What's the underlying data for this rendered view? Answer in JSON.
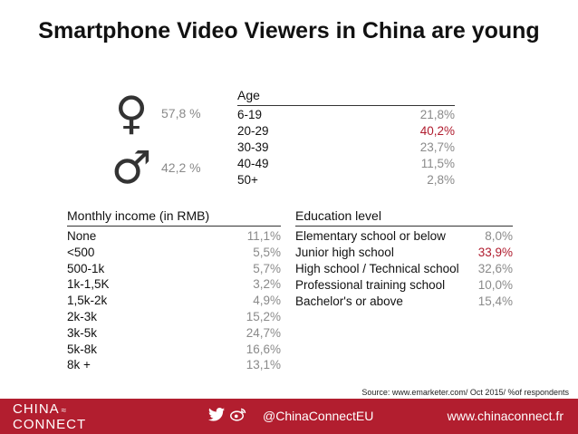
{
  "title": "Smartphone Video Viewers in China are young",
  "gender": {
    "female": {
      "icon": "female-symbol-icon",
      "value": "57,8 %"
    },
    "male": {
      "icon": "male-symbol-icon",
      "value": "42,2 %"
    }
  },
  "age": {
    "heading": "Age",
    "rows": [
      {
        "label": "6-19",
        "value": "21,8%"
      },
      {
        "label": "20-29",
        "value": "40,2%"
      },
      {
        "label": "30-39",
        "value": "23,7%"
      },
      {
        "label": "40-49",
        "value": "11,5%"
      },
      {
        "label": "50+",
        "value": "2,8%"
      }
    ]
  },
  "income": {
    "heading": "Monthly income (in RMB)",
    "rows": [
      {
        "label": "None",
        "value": "11,1%"
      },
      {
        "label": "<500",
        "value": "5,5%"
      },
      {
        "label": "500-1k",
        "value": "5,7%"
      },
      {
        "label": "1k-1,5K",
        "value": "3,2%"
      },
      {
        "label": "1,5k-2k",
        "value": "4,9%"
      },
      {
        "label": "2k-3k",
        "value": "15,2%"
      },
      {
        "label": "3k-5k",
        "value": "24,7%"
      },
      {
        "label": "5k-8k",
        "value": "16,6%"
      },
      {
        "label": "8k +",
        "value": "13,1%"
      }
    ]
  },
  "education": {
    "heading": "Education level",
    "rows": [
      {
        "label": "Elementary school or below",
        "value": "8,0%"
      },
      {
        "label": "Junior high school",
        "value": "33,9%"
      },
      {
        "label": "High school / Technical school",
        "value": "32,6%"
      },
      {
        "label": "Professional training school",
        "value": "10,0%"
      },
      {
        "label": "Bachelor's or above",
        "value": "15,4%"
      }
    ]
  },
  "source": "Source: www.emarketer.com/ Oct 2015/ %of respondents",
  "footer": {
    "logo_line1": "CHINA",
    "logo_line2": "CONNECT",
    "handle": "@ChinaConnectEU",
    "website": "www.chinaconnect.fr",
    "icons": [
      "twitter-icon",
      "weibo-icon"
    ]
  },
  "colors": {
    "highlight": "#b01c2e",
    "footer_bg": "#b21e2f",
    "value_gray": "#8a8a8a"
  }
}
